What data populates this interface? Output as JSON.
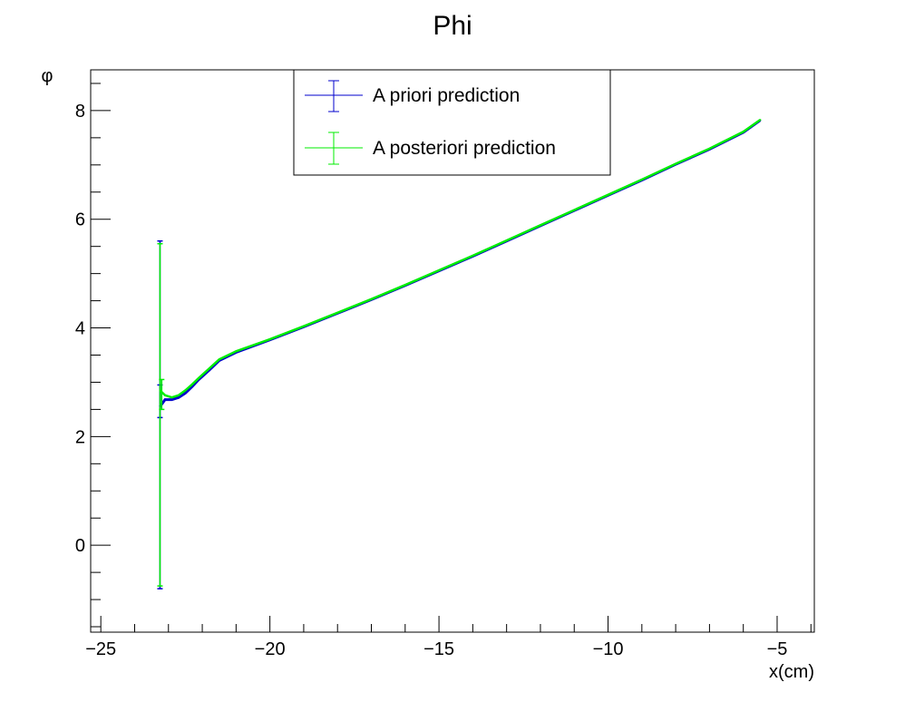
{
  "chart_data": {
    "type": "line",
    "title": "Phi",
    "xlabel": "x(cm)",
    "ylabel": "φ",
    "xlim": [
      -25.3,
      -3.9
    ],
    "ylim": [
      -1.6,
      8.75
    ],
    "x_ticks": [
      -25,
      -20,
      -15,
      -10,
      -5
    ],
    "x_tick_labels": [
      "−25",
      "−20",
      "−15",
      "−10",
      "−5"
    ],
    "y_ticks": [
      0,
      2,
      4,
      6,
      8
    ],
    "y_tick_labels": [
      "0",
      "2",
      "4",
      "6",
      "8"
    ],
    "legend_position": "top-center",
    "grid": false,
    "series": [
      {
        "name": "A priori prediction",
        "color": "#0000cc",
        "x": [
          -23.25,
          -23.1,
          -22.9,
          -22.7,
          -22.5,
          -22.3,
          -22.1,
          -21.8,
          -21.5,
          -21.0,
          -20.0,
          -19.0,
          -18.0,
          -17.0,
          -16.0,
          -15.0,
          -14.0,
          -13.0,
          -12.0,
          -11.0,
          -10.0,
          -9.0,
          -8.0,
          -7.0,
          -6.0,
          -5.5
        ],
        "y": [
          2.55,
          2.68,
          2.68,
          2.72,
          2.8,
          2.92,
          3.05,
          3.22,
          3.4,
          3.55,
          3.78,
          4.02,
          4.27,
          4.52,
          4.78,
          5.05,
          5.32,
          5.6,
          5.88,
          6.16,
          6.44,
          6.72,
          7.01,
          7.29,
          7.6,
          7.82
        ],
        "error_bars": [
          {
            "x": -23.25,
            "low": -0.8,
            "high": 5.6
          },
          {
            "x": -23.25,
            "low": 2.35,
            "high": 2.95
          }
        ]
      },
      {
        "name": "A posteriori prediction",
        "color": "#00ee00",
        "x": [
          -23.25,
          -23.1,
          -22.9,
          -22.7,
          -22.5,
          -22.3,
          -22.1,
          -21.8,
          -21.5,
          -21.0,
          -20.0,
          -19.0,
          -18.0,
          -17.0,
          -16.0,
          -15.0,
          -14.0,
          -13.0,
          -12.0,
          -11.0,
          -10.0,
          -9.0,
          -8.0,
          -7.0,
          -6.0,
          -5.5
        ],
        "y": [
          2.85,
          2.76,
          2.72,
          2.76,
          2.85,
          2.96,
          3.08,
          3.25,
          3.42,
          3.57,
          3.79,
          4.03,
          4.28,
          4.53,
          4.79,
          5.06,
          5.33,
          5.61,
          5.89,
          6.17,
          6.45,
          6.73,
          7.02,
          7.3,
          7.61,
          7.83
        ],
        "error_bars": [
          {
            "x": -23.25,
            "low": -0.75,
            "high": 5.55
          },
          {
            "x": -23.2,
            "low": 2.5,
            "high": 3.05
          }
        ]
      }
    ]
  }
}
